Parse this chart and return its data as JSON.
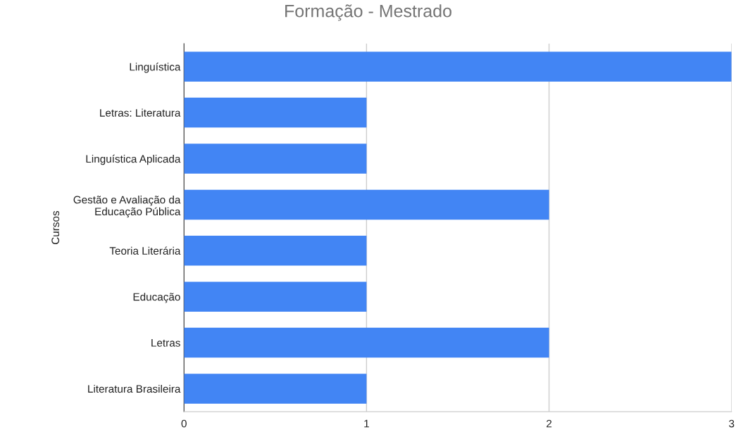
{
  "chart_data": {
    "type": "bar",
    "orientation": "horizontal",
    "title": "Formação - Mestrado",
    "ylabel": "Cursos",
    "categories": [
      "Linguística",
      "Letras: Literatura",
      "Linguística Aplicada",
      "Gestão e Avaliação da\nEducação Pública",
      "Teoria Literária",
      "Educação",
      "Letras",
      "Literatura Brasileira"
    ],
    "values": [
      3,
      1,
      1,
      2,
      1,
      1,
      2,
      1
    ],
    "color": "#4285f4",
    "xlim": [
      0,
      3
    ],
    "xticks": [
      0,
      1,
      2,
      3
    ],
    "grid": "x",
    "legend": false
  }
}
